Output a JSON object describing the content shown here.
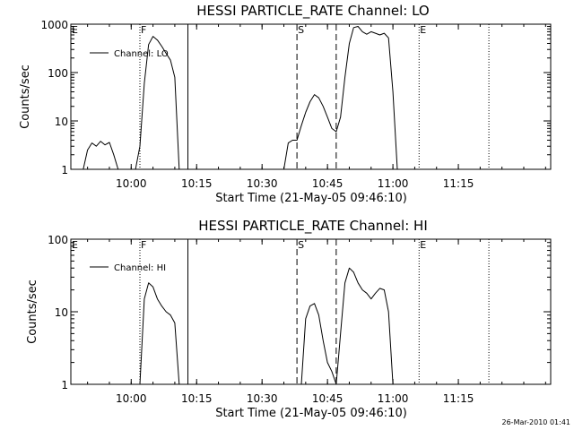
{
  "footer": "26-Mar-2010 01:41",
  "chart_data": [
    {
      "type": "line",
      "title": "HESSI PARTICLE_RATE Channel: LO",
      "xlabel": "Start Time (21-May-05 09:46:10)",
      "ylabel": "Counts/sec",
      "yscale": "log",
      "ylim": [
        1,
        1000
      ],
      "xlim_minutes_after_start": [
        0,
        110
      ],
      "xtick_labels": [
        "10:00",
        "10:15",
        "10:30",
        "10:45",
        "11:00",
        "11:15"
      ],
      "ytick_labels": [
        "1",
        "10",
        "100",
        "1000"
      ],
      "legend": [
        "Channel: LO"
      ],
      "legend_position": "top-left",
      "markers": [
        {
          "label": "E",
          "time": "09:46",
          "style": "dotted"
        },
        {
          "label": "F",
          "time": "10:02",
          "style": "dotted"
        },
        {
          "label": "",
          "time": "10:13",
          "style": "solid"
        },
        {
          "label": "S",
          "time": "10:38",
          "style": "dashed"
        },
        {
          "label": "",
          "time": "10:47",
          "style": "dashed"
        },
        {
          "label": "E",
          "time": "11:06",
          "style": "dotted"
        },
        {
          "label": "",
          "time": "11:22",
          "style": "dotted"
        }
      ],
      "series": [
        {
          "name": "Channel: LO",
          "segments": [
            {
              "x": [
                "09:49",
                "09:50",
                "09:51",
                "09:52",
                "09:53",
                "09:54",
                "09:55",
                "09:56",
                "09:57"
              ],
              "y": [
                1,
                2.5,
                3.5,
                3.0,
                3.8,
                3.2,
                3.6,
                2.0,
                1
              ]
            },
            {
              "x": [
                "10:01",
                "10:02",
                "10:03",
                "10:04",
                "10:05",
                "10:06",
                "10:07",
                "10:08",
                "10:09",
                "10:10",
                "10:11"
              ],
              "y": [
                1,
                3,
                60,
                380,
                560,
                470,
                350,
                250,
                180,
                80,
                1
              ]
            },
            {
              "x": [
                "10:35",
                "10:36",
                "10:37",
                "10:38",
                "10:39",
                "10:40",
                "10:41",
                "10:42",
                "10:43",
                "10:44",
                "10:45",
                "10:46",
                "10:47",
                "10:48",
                "10:49",
                "10:50",
                "10:51",
                "10:52",
                "10:53",
                "10:54",
                "10:55",
                "10:56",
                "10:57",
                "10:58",
                "10:59",
                "11:00",
                "11:01"
              ],
              "y": [
                1,
                3.5,
                4,
                4,
                8,
                15,
                25,
                35,
                30,
                20,
                12,
                7,
                6,
                12,
                80,
                400,
                850,
                900,
                700,
                620,
                700,
                650,
                600,
                650,
                520,
                40,
                1
              ]
            }
          ]
        }
      ]
    },
    {
      "type": "line",
      "title": "HESSI PARTICLE_RATE Channel: HI",
      "xlabel": "Start Time (21-May-05 09:46:10)",
      "ylabel": "Counts/sec",
      "yscale": "log",
      "ylim": [
        1,
        100
      ],
      "xlim_minutes_after_start": [
        0,
        110
      ],
      "xtick_labels": [
        "10:00",
        "10:15",
        "10:30",
        "10:45",
        "11:00",
        "11:15"
      ],
      "ytick_labels": [
        "1",
        "10",
        "100"
      ],
      "legend": [
        "Channel: HI"
      ],
      "legend_position": "top-left",
      "markers": [
        {
          "label": "E",
          "time": "09:46",
          "style": "dotted"
        },
        {
          "label": "F",
          "time": "10:02",
          "style": "dotted"
        },
        {
          "label": "",
          "time": "10:13",
          "style": "solid"
        },
        {
          "label": "S",
          "time": "10:38",
          "style": "dashed"
        },
        {
          "label": "",
          "time": "10:47",
          "style": "dashed"
        },
        {
          "label": "E",
          "time": "11:06",
          "style": "dotted"
        },
        {
          "label": "",
          "time": "11:22",
          "style": "dotted"
        }
      ],
      "series": [
        {
          "name": "Channel: HI",
          "segments": [
            {
              "x": [
                "10:02",
                "10:03",
                "10:04",
                "10:05",
                "10:06",
                "10:07",
                "10:08",
                "10:09",
                "10:10",
                "10:11"
              ],
              "y": [
                1,
                15,
                25,
                22,
                15,
                12,
                10,
                9,
                7,
                1
              ]
            },
            {
              "x": [
                "10:39",
                "10:40",
                "10:41",
                "10:42",
                "10:43",
                "10:44",
                "10:45",
                "10:46",
                "10:47",
                "10:48",
                "10:49",
                "10:50",
                "10:51",
                "10:52",
                "10:53",
                "10:54",
                "10:55",
                "10:56",
                "10:57",
                "10:58",
                "10:59",
                "11:00"
              ],
              "y": [
                1,
                8,
                12,
                13,
                9,
                4,
                2,
                1.5,
                1,
                5,
                25,
                40,
                35,
                25,
                20,
                18,
                15,
                18,
                21,
                20,
                10,
                1
              ]
            }
          ]
        }
      ]
    }
  ]
}
